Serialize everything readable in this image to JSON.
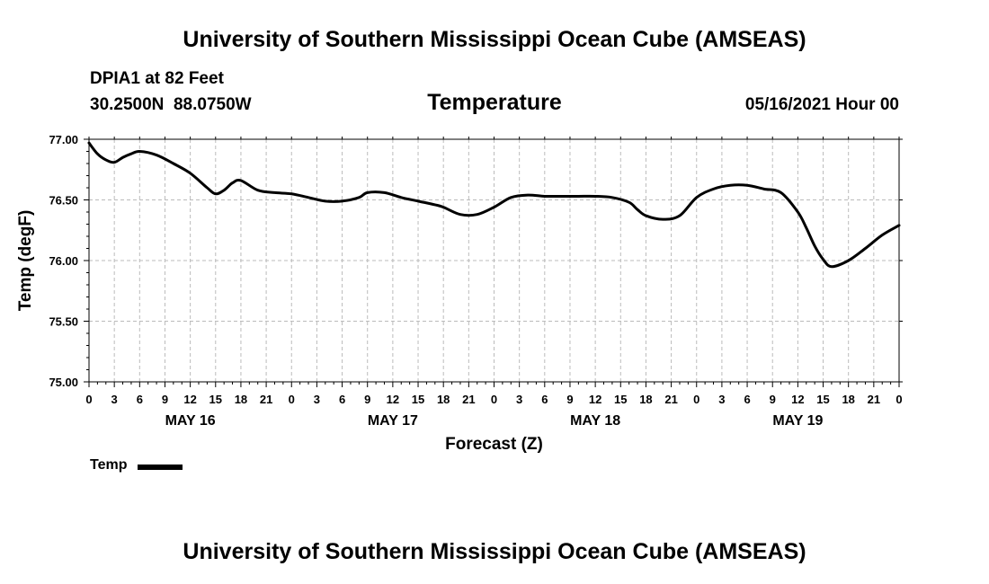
{
  "header": {
    "title": "University of Southern Mississippi Ocean Cube (AMSEAS)",
    "station": "DPIA1 at 82 Feet",
    "coordinates": "30.2500N  88.0750W",
    "subtitle": "Temperature",
    "datetime": "05/16/2021 Hour 00"
  },
  "footer": {
    "title": "University of Southern Mississippi Ocean Cube (AMSEAS)"
  },
  "chart_data": {
    "type": "line",
    "title": "Temperature",
    "xlabel": "Forecast (Z)",
    "ylabel": "Temp (degF)",
    "ylim": [
      75.0,
      77.0
    ],
    "xlim": [
      0,
      96
    ],
    "y_ticks": [
      "75.00",
      "75.50",
      "76.00",
      "76.50",
      "77.00"
    ],
    "x_tick_labels": [
      "0",
      "3",
      "6",
      "9",
      "12",
      "15",
      "18",
      "21",
      "0",
      "3",
      "6",
      "9",
      "12",
      "15",
      "18",
      "21",
      "0",
      "3",
      "6",
      "9",
      "12",
      "15",
      "18",
      "21",
      "0",
      "3",
      "6",
      "9",
      "12",
      "15",
      "18",
      "21",
      "0"
    ],
    "day_labels": [
      {
        "label": "MAY 16",
        "hour": 12
      },
      {
        "label": "MAY 17",
        "hour": 36
      },
      {
        "label": "MAY 18",
        "hour": 60
      },
      {
        "label": "MAY 19",
        "hour": 84
      }
    ],
    "grid": true,
    "legend": [
      {
        "name": "Temp",
        "color": "#000000"
      }
    ],
    "series": [
      {
        "name": "Temp",
        "x": [
          0,
          1,
          2,
          3,
          4,
          5,
          6,
          8,
          10,
          12,
          14,
          15,
          16,
          17,
          18,
          20,
          22,
          24,
          26,
          28,
          30,
          32,
          33,
          35,
          37,
          39,
          41,
          42,
          44,
          46,
          48,
          50,
          52,
          54,
          56,
          58,
          60,
          62,
          64,
          65,
          66,
          68,
          70,
          72,
          74,
          76,
          78,
          80,
          82,
          84,
          85,
          86,
          87,
          88,
          90,
          92,
          94,
          96
        ],
        "values": [
          76.97,
          76.88,
          76.83,
          76.81,
          76.85,
          76.88,
          76.9,
          76.87,
          76.8,
          76.72,
          76.6,
          76.55,
          76.58,
          76.64,
          76.66,
          76.58,
          76.56,
          76.55,
          76.52,
          76.49,
          76.49,
          76.52,
          76.56,
          76.56,
          76.52,
          76.49,
          76.46,
          76.44,
          76.38,
          76.38,
          76.44,
          76.52,
          76.54,
          76.53,
          76.53,
          76.53,
          76.53,
          76.52,
          76.48,
          76.42,
          76.37,
          76.34,
          76.37,
          76.52,
          76.59,
          76.62,
          76.62,
          76.59,
          76.56,
          76.4,
          76.27,
          76.12,
          76.01,
          75.95,
          76.0,
          76.1,
          76.21,
          76.29
        ]
      }
    ]
  }
}
